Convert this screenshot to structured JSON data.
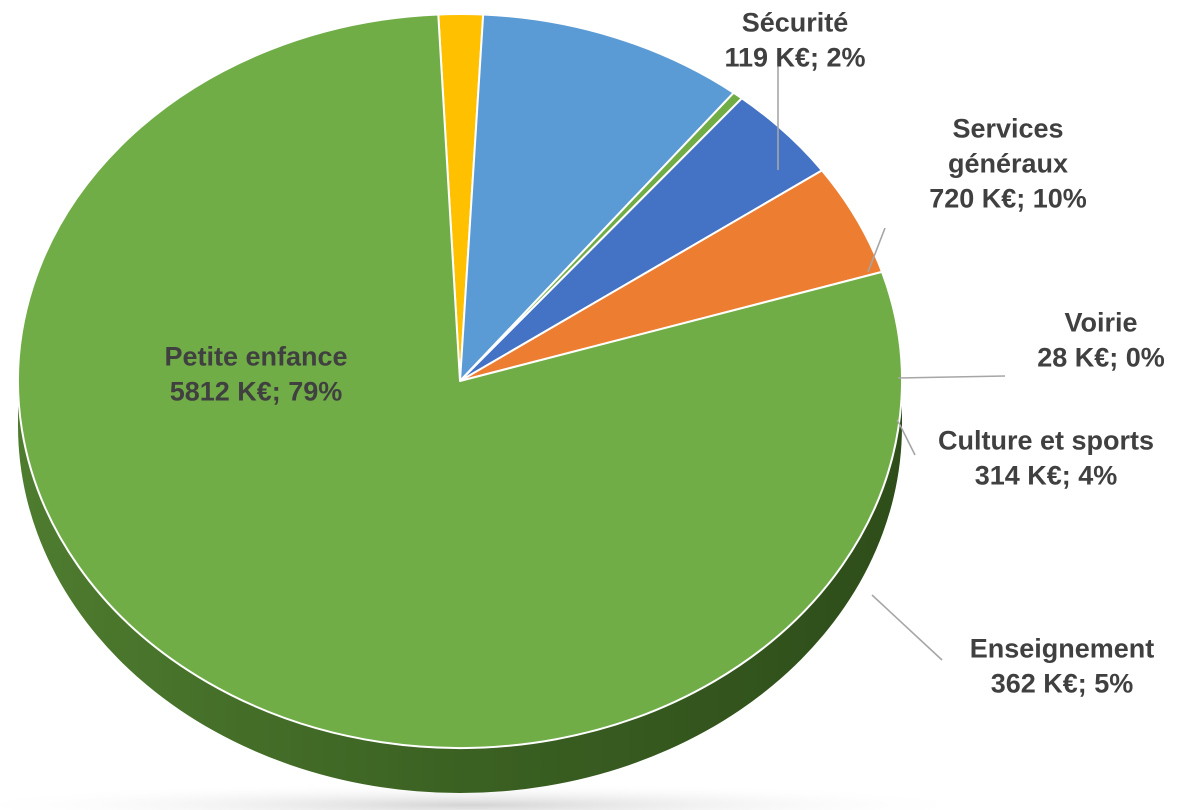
{
  "chart_data": {
    "type": "pie",
    "style": "3d",
    "unit": "K€",
    "slices": [
      {
        "label": "Sécurité",
        "value": 119,
        "percent": 2,
        "value_text": "119 K€; 2%",
        "color": "#ffc000"
      },
      {
        "label": "Services généraux",
        "label_lines": [
          "Services",
          "généraux"
        ],
        "value": 720,
        "percent": 10,
        "value_text": "720 K€; 10%",
        "color": "#5b9bd5"
      },
      {
        "label": "Voirie",
        "value": 28,
        "percent": 0,
        "value_text": "28 K€; 0%",
        "color": "#70ad47"
      },
      {
        "label": "Culture et sports",
        "value": 314,
        "percent": 4,
        "value_text": "314 K€; 4%",
        "color": "#4472c4"
      },
      {
        "label": "Enseignement",
        "value": 362,
        "percent": 5,
        "value_text": "362 K€; 5%",
        "color": "#ed7d31"
      },
      {
        "label": "Petite enfance",
        "value": 5812,
        "percent": 79,
        "value_text": "5812 K€; 79%",
        "color": "#70ad47"
      }
    ]
  }
}
